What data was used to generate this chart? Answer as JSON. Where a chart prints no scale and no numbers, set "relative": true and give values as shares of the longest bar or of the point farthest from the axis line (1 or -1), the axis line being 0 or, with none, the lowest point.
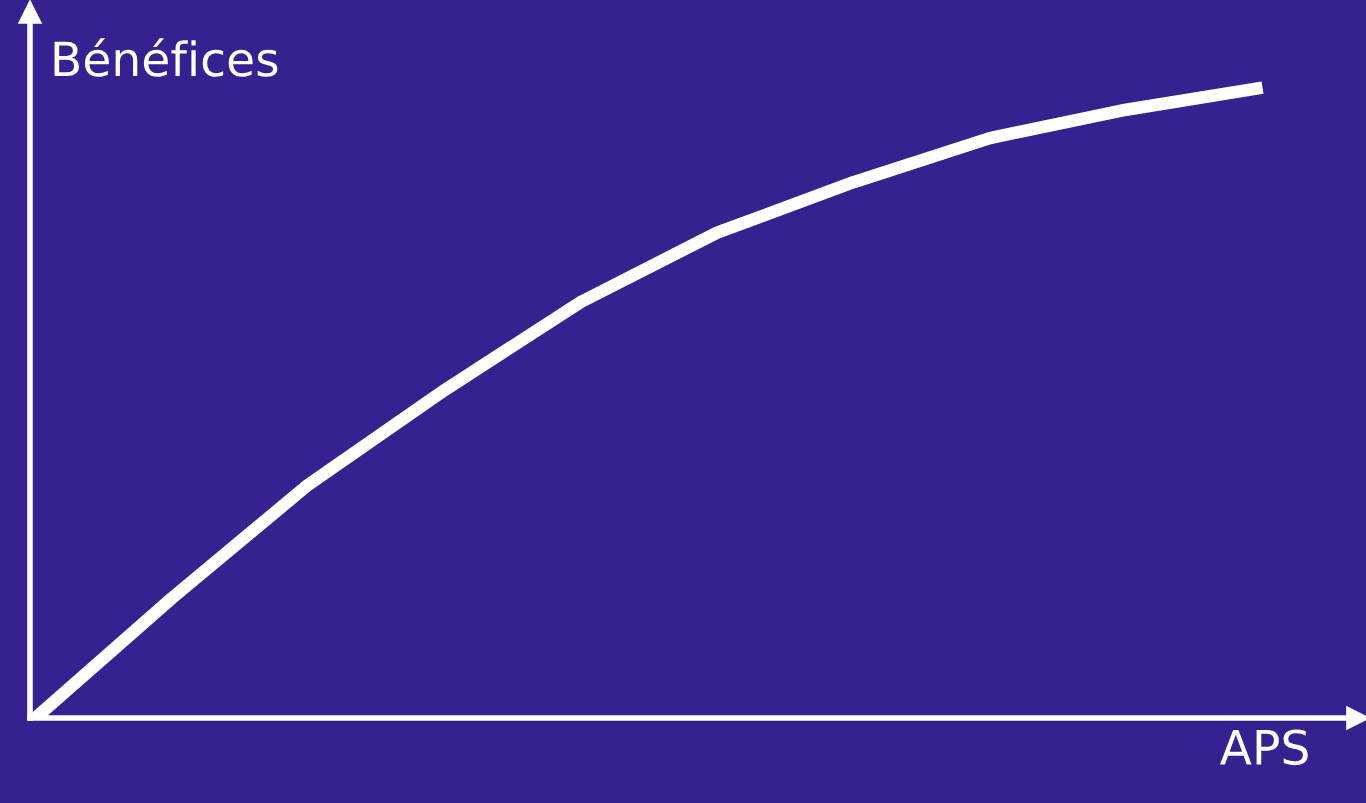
{
  "chart_data": {
    "type": "line",
    "relative": true,
    "xlabel": "APS",
    "ylabel": "Bénéfices",
    "categories": [
      null,
      null,
      null,
      null,
      null,
      null,
      null,
      null,
      null,
      null
    ],
    "series": [
      {
        "color": "#ffffff",
        "values": [
          0,
          0.19,
          0.37,
          0.52,
          0.66,
          0.77,
          0.85,
          0.92,
          0.965,
          1
        ]
      }
    ],
    "grid": false,
    "marker": "none",
    "line_style": "solid"
  }
}
